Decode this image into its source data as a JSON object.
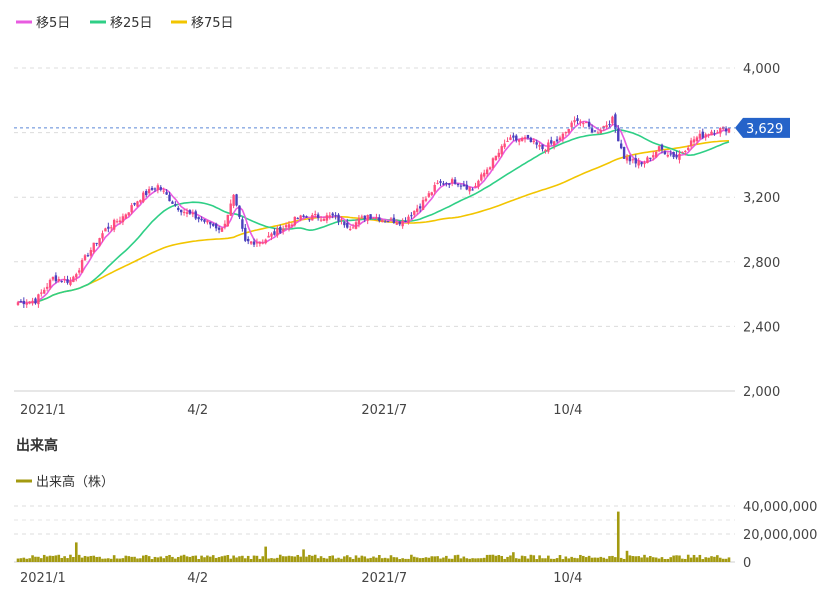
{
  "chart_data": [
    {
      "type": "candlestick",
      "legend": [
        {
          "label": "移5日",
          "color": "#e85be0"
        },
        {
          "label": "移25日",
          "color": "#2fcf86"
        },
        {
          "label": "移75日",
          "color": "#f2c500"
        }
      ],
      "y_ticks": [
        "4,000",
        "3,200",
        "2,800",
        "2,400",
        "2,000"
      ],
      "y_tick_values": [
        4000,
        3200,
        2800,
        2400,
        2000
      ],
      "ylim": [
        2000,
        4200
      ],
      "x_tick_labels": [
        "2021/1",
        "4/2",
        "2021/7",
        "10/4"
      ],
      "x_tick_index": [
        0,
        61,
        125,
        188
      ],
      "current_price_label": "3,629",
      "current_price": 3629,
      "colors": {
        "up": "#ff4d7d",
        "down": "#4b3fbd",
        "ma5": "#e85be0",
        "ma25": "#2fcf86",
        "ma75": "#f2c500",
        "price_badge": "#2563c9"
      },
      "close_anchors": [
        [
          0,
          2550
        ],
        [
          6,
          2560
        ],
        [
          12,
          2700
        ],
        [
          18,
          2680
        ],
        [
          24,
          2850
        ],
        [
          30,
          3000
        ],
        [
          36,
          3080
        ],
        [
          42,
          3200
        ],
        [
          48,
          3270
        ],
        [
          54,
          3150
        ],
        [
          58,
          3100
        ],
        [
          64,
          3050
        ],
        [
          70,
          3000
        ],
        [
          74,
          3200
        ],
        [
          78,
          2920
        ],
        [
          84,
          2930
        ],
        [
          90,
          3000
        ],
        [
          96,
          3070
        ],
        [
          102,
          3080
        ],
        [
          108,
          3080
        ],
        [
          114,
          3020
        ],
        [
          120,
          3090
        ],
        [
          126,
          3060
        ],
        [
          132,
          3050
        ],
        [
          138,
          3150
        ],
        [
          144,
          3280
        ],
        [
          150,
          3300
        ],
        [
          156,
          3250
        ],
        [
          162,
          3400
        ],
        [
          168,
          3550
        ],
        [
          174,
          3560
        ],
        [
          180,
          3500
        ],
        [
          186,
          3560
        ],
        [
          192,
          3690
        ],
        [
          198,
          3600
        ],
        [
          204,
          3680
        ],
        [
          208,
          3450
        ],
        [
          214,
          3400
        ],
        [
          220,
          3500
        ],
        [
          226,
          3450
        ],
        [
          232,
          3560
        ],
        [
          238,
          3610
        ],
        [
          244,
          3629
        ]
      ]
    },
    {
      "type": "bar",
      "title": "出来高",
      "legend": [
        {
          "label": "出来高（株）",
          "color": "#a39a10"
        }
      ],
      "y_ticks": [
        "40,000,000",
        "20,000,000",
        "0"
      ],
      "y_tick_values": [
        40000000,
        20000000,
        0
      ],
      "ylim": [
        0,
        45000000
      ],
      "x_tick_labels": [
        "2021/1",
        "4/2",
        "2021/7",
        "10/4"
      ],
      "x_tick_index": [
        0,
        61,
        125,
        188
      ],
      "bar_color": "#a39a10",
      "typical_volume": 3500000,
      "spikes": [
        [
          20,
          14000000
        ],
        [
          85,
          11000000
        ],
        [
          98,
          9000000
        ],
        [
          206,
          36000000
        ],
        [
          209,
          8000000
        ],
        [
          170,
          7000000
        ]
      ]
    }
  ]
}
